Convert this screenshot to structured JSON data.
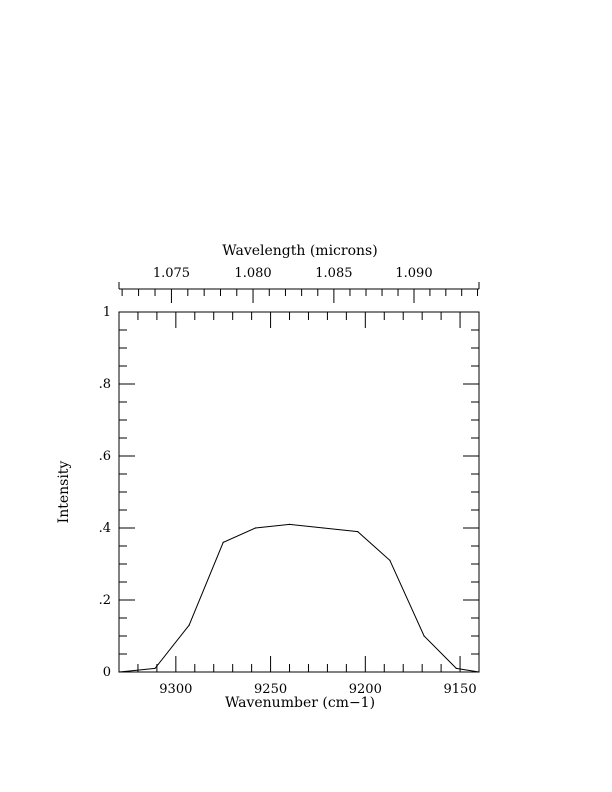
{
  "chart_data": {
    "type": "line",
    "xlabel": "Wavenumber (cm−1)",
    "ylabel": "Intensity",
    "x2label": "Wavelength (microns)",
    "xlim": [
      9330,
      9140
    ],
    "ylim": [
      0,
      1
    ],
    "x_ticks": [
      {
        "value": 9300,
        "label": "9300"
      },
      {
        "value": 9250,
        "label": "9250"
      },
      {
        "value": 9200,
        "label": "9200"
      },
      {
        "value": 9150,
        "label": "9150"
      }
    ],
    "x_minor_step": 10,
    "y_ticks": [
      {
        "value": 0,
        "label": "0"
      },
      {
        "value": 0.2,
        "label": ".2"
      },
      {
        "value": 0.4,
        "label": ".4"
      },
      {
        "value": 0.6,
        "label": ".6"
      },
      {
        "value": 0.8,
        "label": ".8"
      },
      {
        "value": 1,
        "label": "1"
      }
    ],
    "y_minor_step": 0.05,
    "x2_ticks": [
      {
        "value": 1.075,
        "label": "1.075"
      },
      {
        "value": 1.08,
        "label": "1.080"
      },
      {
        "value": 1.085,
        "label": "1.085"
      },
      {
        "value": 1.09,
        "label": "1.090"
      }
    ],
    "x2_minor_step": 0.001,
    "series": [
      {
        "x": [
          9330,
          9311,
          9293,
          9275,
          9258,
          9240,
          9222,
          9204,
          9187,
          9169,
          9152,
          9140
        ],
        "y": [
          0.0,
          0.01,
          0.13,
          0.36,
          0.4,
          0.41,
          0.4,
          0.39,
          0.31,
          0.1,
          0.01,
          0.0
        ]
      }
    ]
  }
}
